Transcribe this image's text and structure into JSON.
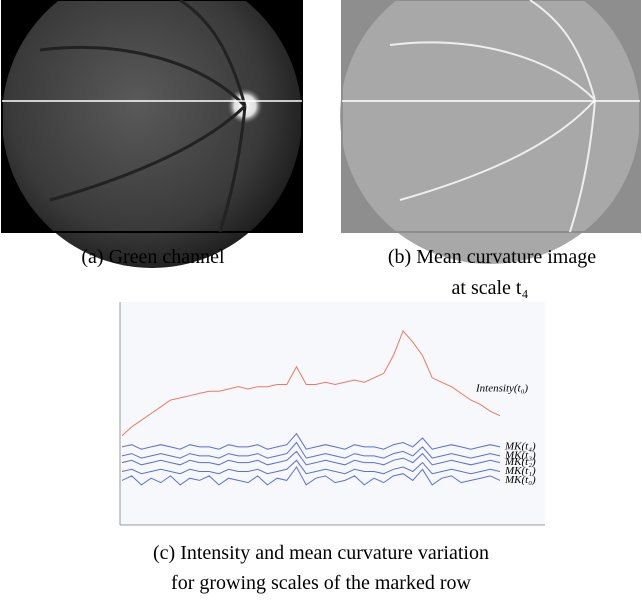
{
  "figure": {
    "panel_a_caption": "(a) Green channel",
    "panel_b_caption": [
      "(b) Mean curvature image",
      "at scale t₄"
    ],
    "panel_c_caption": [
      "(c) Intensity and mean curvature variation",
      "for growing scales of the marked row"
    ]
  },
  "chart_data": {
    "type": "line",
    "ylim": [
      0,
      100
    ],
    "series": [
      {
        "name": "Intensity(t₀)",
        "color": "#f07860",
        "values": [
          40,
          44,
          47,
          50,
          53,
          56,
          57,
          58,
          59,
          60,
          60,
          61,
          62,
          61,
          62,
          62,
          63,
          63,
          71,
          63,
          63,
          64,
          63,
          64,
          65,
          64,
          66,
          68,
          76,
          87,
          82,
          76,
          66,
          64,
          62,
          59,
          56,
          54,
          51,
          49
        ]
      },
      {
        "name": "MK(t₄)",
        "color": "#5a6fd8",
        "values": [
          35,
          36,
          34,
          35,
          36,
          35,
          34,
          36,
          35,
          35,
          34,
          36,
          35,
          35,
          36,
          34,
          35,
          36,
          41,
          34,
          35,
          36,
          35,
          34,
          36,
          35,
          35,
          34,
          36,
          37,
          35,
          39,
          34,
          35,
          36,
          35,
          34,
          35,
          36,
          35
        ]
      },
      {
        "name": "MK(t₃)",
        "color": "#5a6fd8",
        "values": [
          31,
          32,
          30,
          31,
          32,
          31,
          30,
          32,
          31,
          31,
          30,
          32,
          31,
          31,
          32,
          30,
          31,
          32,
          37,
          30,
          31,
          32,
          31,
          30,
          32,
          31,
          31,
          30,
          32,
          33,
          31,
          35,
          30,
          31,
          32,
          31,
          30,
          31,
          32,
          31
        ]
      },
      {
        "name": "MK(t₂)",
        "color": "#5a6fd8",
        "values": [
          28,
          29,
          27,
          28,
          29,
          28,
          27,
          29,
          28,
          28,
          27,
          29,
          28,
          28,
          29,
          27,
          28,
          29,
          33,
          27,
          28,
          29,
          28,
          27,
          29,
          28,
          28,
          27,
          29,
          30,
          28,
          32,
          27,
          28,
          29,
          28,
          27,
          28,
          29,
          28
        ]
      },
      {
        "name": "MK(t₁)",
        "color": "#5a6fd8",
        "values": [
          24,
          25,
          23,
          24,
          25,
          24,
          23,
          25,
          24,
          24,
          23,
          25,
          24,
          24,
          25,
          23,
          24,
          25,
          29,
          23,
          24,
          25,
          24,
          23,
          25,
          24,
          24,
          23,
          25,
          26,
          24,
          28,
          23,
          24,
          25,
          24,
          23,
          24,
          25,
          24
        ]
      },
      {
        "name": "MK(t₀)",
        "color": "#5a6fd8",
        "values": [
          20,
          22,
          18,
          21,
          19,
          22,
          18,
          21,
          20,
          22,
          18,
          21,
          20,
          19,
          22,
          18,
          21,
          20,
          26,
          18,
          21,
          22,
          19,
          20,
          22,
          18,
          21,
          19,
          22,
          23,
          20,
          25,
          18,
          21,
          22,
          19,
          20,
          21,
          22,
          20
        ]
      }
    ]
  }
}
